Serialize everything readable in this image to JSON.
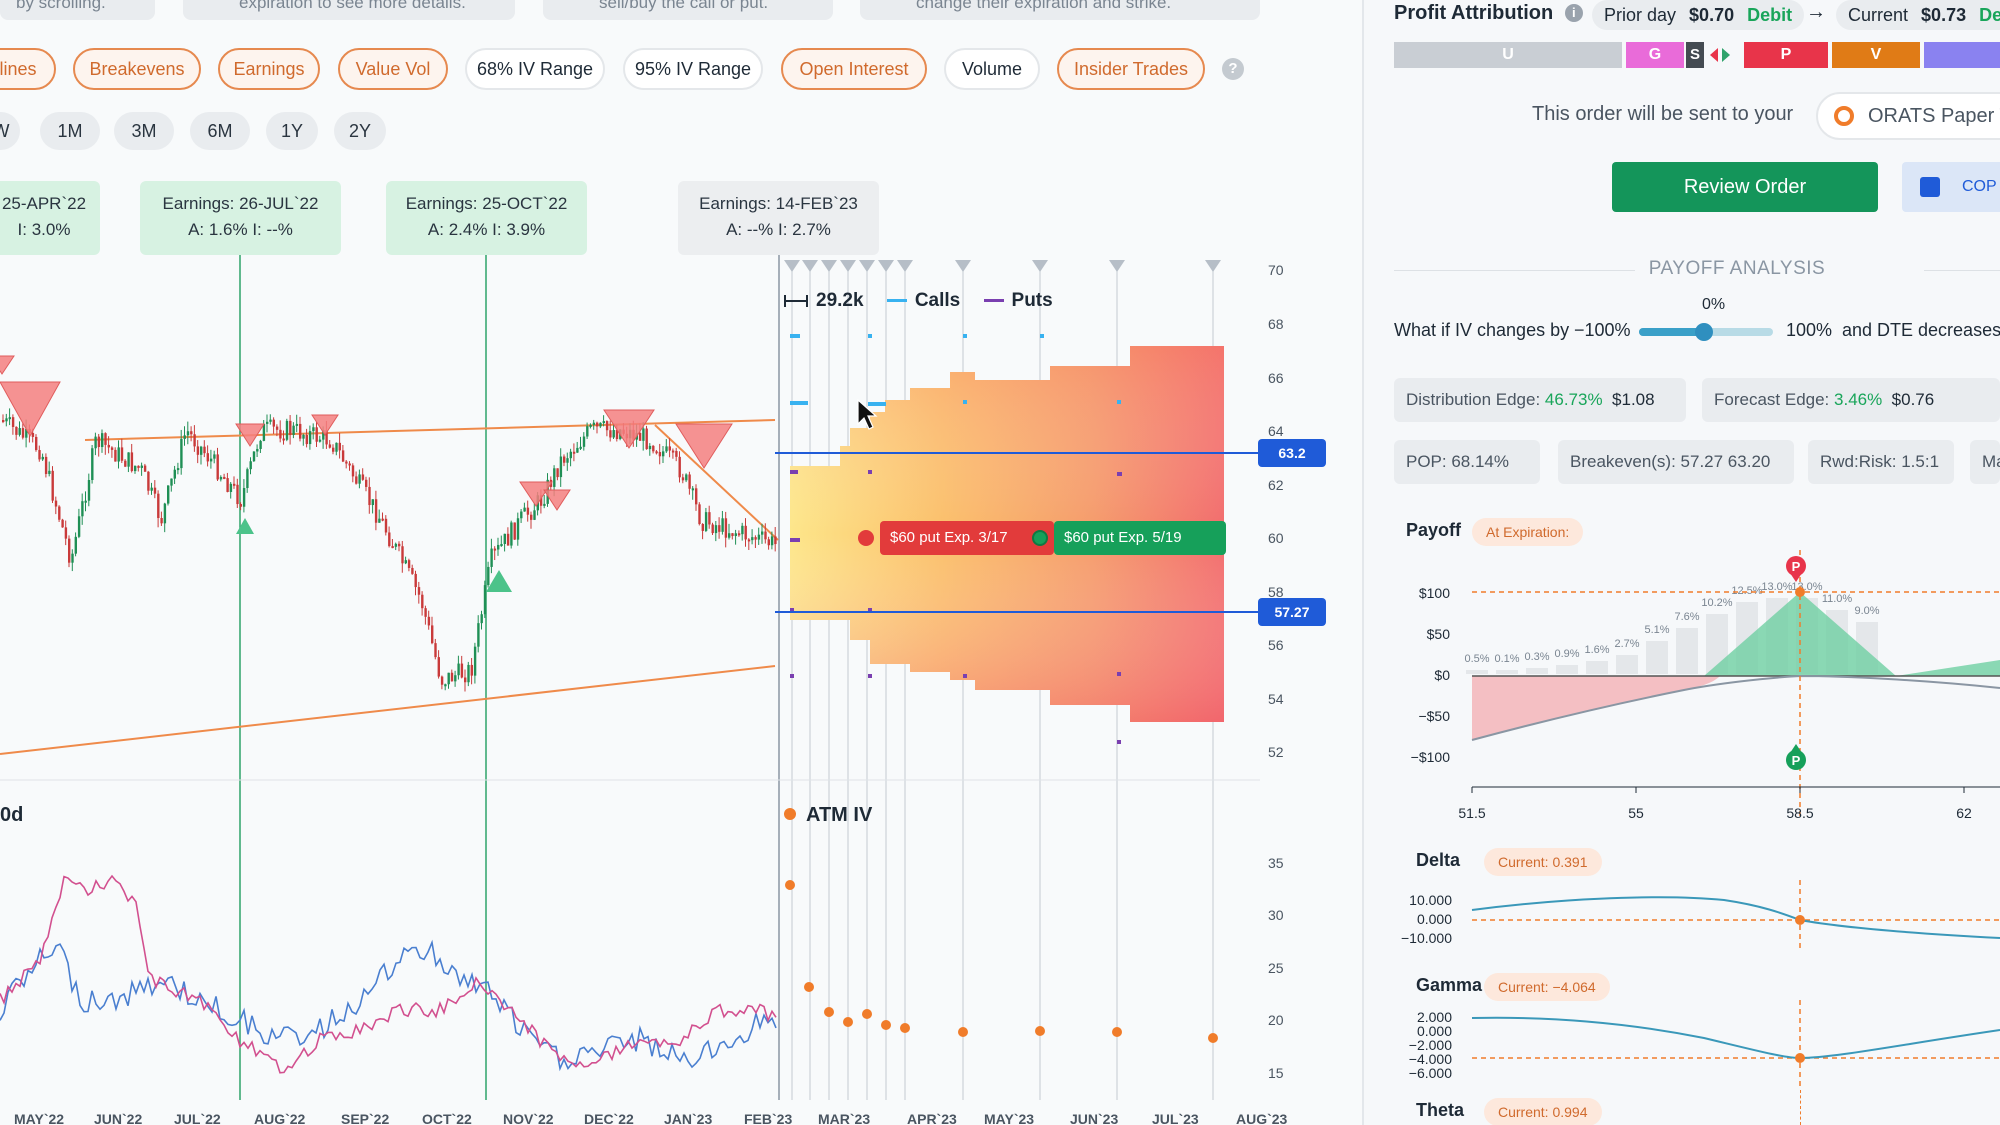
{
  "tips": [
    "by scrolling.",
    "expiration to see more details.",
    "sell/buy the call or put.",
    "change their expiration and strike."
  ],
  "toggles": [
    {
      "label": "lines",
      "style": "orange"
    },
    {
      "label": "Breakevens",
      "style": "orange"
    },
    {
      "label": "Earnings",
      "style": "orange"
    },
    {
      "label": "Value Vol",
      "style": "orange"
    },
    {
      "label": "68% IV Range",
      "style": "plain"
    },
    {
      "label": "95% IV Range",
      "style": "plain"
    },
    {
      "label": "Open Interest",
      "style": "orange"
    },
    {
      "label": "Volume",
      "style": "plain"
    },
    {
      "label": "Insider Trades",
      "style": "orange"
    }
  ],
  "help_glyph": "?",
  "ranges": [
    "W",
    "1M",
    "3M",
    "6M",
    "1Y",
    "2Y"
  ],
  "earnings": [
    {
      "line1": "25-APR`22",
      "line2": "I: 3.0%",
      "style": "green"
    },
    {
      "line1": "Earnings: 26-JUL`22",
      "line2": "A: 1.6%   I: --%",
      "style": "green"
    },
    {
      "line1": "Earnings: 25-OCT`22",
      "line2": "A: 2.4%   I: 3.9%",
      "style": "green"
    },
    {
      "line1": "Earnings: 14-FEB`23",
      "line2": "A: --%   I: 2.7%",
      "style": "gray"
    }
  ],
  "legend": {
    "width_value": "29.2k",
    "calls": "Calls",
    "puts": "Puts"
  },
  "price_axis": [
    "70",
    "68",
    "66",
    "64",
    "62",
    "60",
    "58",
    "56",
    "54",
    "52"
  ],
  "price_tags": {
    "upper": "63.2",
    "lower": "57.27"
  },
  "annotations": {
    "put1": "$60 put Exp. 3/17",
    "put2": "$60 put Exp. 5/19"
  },
  "iv_panel": {
    "left_label": "0d",
    "atm_label": "ATM IV",
    "axis": [
      "35",
      "30",
      "25",
      "20",
      "15"
    ]
  },
  "x_axis": [
    "MAY`22",
    "JUN`22",
    "JUL`22",
    "AUG`22",
    "SEP`22",
    "OCT`22",
    "NOV`22",
    "DEC`22",
    "JAN`23",
    "FEB`23",
    "MAR`23",
    "APR`23",
    "MAY`23",
    "JUN`23",
    "JUL`23",
    "AUG`23"
  ],
  "profit": {
    "title": "Profit Attribution",
    "prior_label": "Prior day",
    "prior_value": "$0.70",
    "prior_type": "Debit",
    "arrow": "→",
    "current_label": "Current",
    "current_value": "$0.73",
    "current_type": "Debit",
    "bars": [
      {
        "label": "U",
        "color": "#c9ced4"
      },
      {
        "label": "G",
        "color": "#e96bd9"
      },
      {
        "label": "S",
        "color": "#444b52"
      },
      {
        "label": "P",
        "color": "#e8344a"
      },
      {
        "label": "V",
        "color": "#e07b16"
      },
      {
        "label": "",
        "color": "#8a82f0"
      }
    ]
  },
  "order": {
    "notice": "This order will be sent to your",
    "broker": "ORATS Paper T",
    "review": "Review Order",
    "copy": "COP"
  },
  "payoff": {
    "section_title": "PAYOFF ANALYSIS",
    "slider_value": "0%",
    "what_if": "What if IV changes by",
    "min": "−100%",
    "max": "100%",
    "dte": "and DTE decreases b",
    "dist_edge_label": "Distribution Edge:",
    "dist_edge_pct": "46.73%",
    "dist_edge_val": "$1.08",
    "forecast_label": "Forecast Edge:",
    "forecast_pct": "3.46%",
    "forecast_val": "$0.76",
    "pop": "POP: 68.14%",
    "breakevens": "Breakeven(s):  57.27   63.20",
    "rwd": "Rwd:Risk:  1.5:1",
    "ma": "Ma",
    "payoff_label": "Payoff",
    "at_exp": "At Expiration:",
    "y_axis": [
      "$100",
      "$50",
      "$0",
      "−$50",
      "−$100"
    ],
    "x_axis": [
      "51.5",
      "55",
      "58.5",
      "62"
    ],
    "prob_labels": [
      "0.5%",
      "0.1%",
      "0.3%",
      "0.9%",
      "1.6%",
      "2.7%",
      "5.1%",
      "7.6%",
      "10.2%",
      "12.5%",
      "13.0%",
      "13.0%",
      "11.0%",
      "9.0%"
    ],
    "p_marker": "P"
  },
  "greeks": {
    "delta": {
      "label": "Delta",
      "current": "Current:  0.391",
      "ticks": [
        "10.000",
        "0.000",
        "−10.000"
      ]
    },
    "gamma": {
      "label": "Gamma",
      "current": "Current:  −4.064",
      "ticks": [
        "2.000",
        "0.000",
        "−2.000",
        "−4.000",
        "−6.000"
      ]
    },
    "theta": {
      "label": "Theta",
      "current": "Current:  0.994"
    }
  },
  "colors": {
    "accent_orange": "#e6894f",
    "green": "#19a55a",
    "blue": "#1f5bd8",
    "review": "#14955a"
  }
}
